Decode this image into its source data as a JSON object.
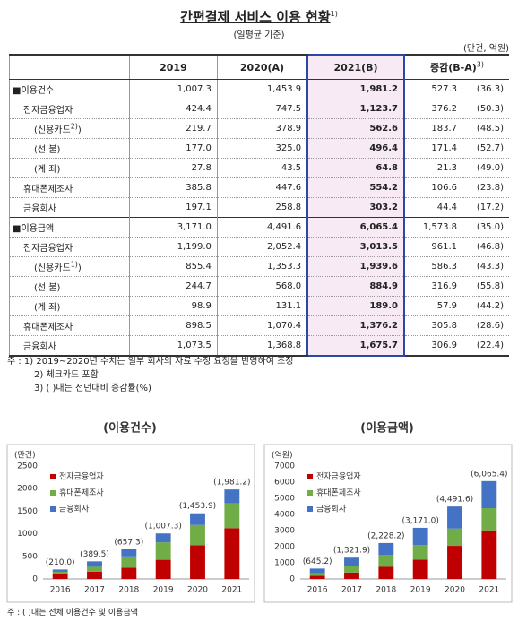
{
  "header": {
    "title": "간편결제 서비스 이용 현황",
    "title_sup": "1)",
    "subtitle": "(일평균 기준)",
    "unit": "(만건, 억원)"
  },
  "table": {
    "columns": [
      "2019",
      "2020(A)",
      "2021(B)",
      "증감(B-A)"
    ],
    "diff_sup": "3)",
    "sections": [
      {
        "label": "■이용건수",
        "cells": [
          "1,007.3",
          "1,453.9",
          "1,981.2",
          "527.3",
          "(36.3)"
        ],
        "rows": [
          {
            "label": "전자금융업자",
            "cells": [
              "424.4",
              "747.5",
              "1,123.7",
              "376.2",
              "(50.3)"
            ],
            "rows": [
              {
                "label": "(신용카드",
                "sup": "2)",
                "label_end": ")",
                "cells": [
                  "219.7",
                  "378.9",
                  "562.6",
                  "183.7",
                  "(48.5)"
                ]
              },
              {
                "label": "(선   불)",
                "cells": [
                  "177.0",
                  "325.0",
                  "496.4",
                  "171.4",
                  "(52.7)"
                ]
              },
              {
                "label": "(계   좌)",
                "cells": [
                  "27.8",
                  "43.5",
                  "64.8",
                  "21.3",
                  "(49.0)"
                ]
              }
            ]
          },
          {
            "label": "휴대폰제조사",
            "cells": [
              "385.8",
              "447.6",
              "554.2",
              "106.6",
              "(23.8)"
            ]
          },
          {
            "label": "금융회사",
            "cells": [
              "197.1",
              "258.8",
              "303.2",
              "44.4",
              "(17.2)"
            ]
          }
        ]
      },
      {
        "label": "■이용금액",
        "cells": [
          "3,171.0",
          "4,491.6",
          "6,065.4",
          "1,573.8",
          "(35.0)"
        ],
        "rows": [
          {
            "label": "전자금융업자",
            "cells": [
              "1,199.0",
              "2,052.4",
              "3,013.5",
              "961.1",
              "(46.8)"
            ],
            "rows": [
              {
                "label": "(신용카드",
                "sup": "1)",
                "label_end": ")",
                "cells": [
                  "855.4",
                  "1,353.3",
                  "1,939.6",
                  "586.3",
                  "(43.3)"
                ]
              },
              {
                "label": "(선   불)",
                "cells": [
                  "244.7",
                  "568.0",
                  "884.9",
                  "316.9",
                  "(55.8)"
                ]
              },
              {
                "label": "(계   좌)",
                "cells": [
                  "98.9",
                  "131.1",
                  "189.0",
                  "57.9",
                  "(44.2)"
                ]
              }
            ]
          },
          {
            "label": "휴대폰제조사",
            "cells": [
              "898.5",
              "1,070.4",
              "1,376.2",
              "305.8",
              "(28.6)"
            ]
          },
          {
            "label": "금융회사",
            "cells": [
              "1,073.5",
              "1,368.8",
              "1,675.7",
              "306.9",
              "(22.4)"
            ]
          }
        ]
      }
    ]
  },
  "notes": [
    "주 : 1) 2019~2020년 수치는 일부 회사의 자료 수정 요청을 반영하여 조정",
    "2) 체크카드 포함",
    "3) (   )내는 전년대비 증감률(%)"
  ],
  "chart_data": [
    {
      "type": "bar",
      "stacked": true,
      "title": "(이용건수)",
      "y_label": "(만건)",
      "categories": [
        "2016",
        "2017",
        "2018",
        "2019",
        "2020",
        "2021"
      ],
      "series": [
        {
          "name": "전자금융업자",
          "color": "#c00000",
          "values": [
            100,
            160,
            250,
            424.4,
            747.5,
            1123.7
          ]
        },
        {
          "name": "휴대폰제조사",
          "color": "#70ad47",
          "values": [
            60,
            110,
            250,
            385.8,
            447.6,
            554.2
          ]
        },
        {
          "name": "금융회사",
          "color": "#4472c4",
          "values": [
            50,
            120,
            157,
            197.1,
            258.8,
            303.2
          ]
        }
      ],
      "totals": {
        "values": [
          210.0,
          389.5,
          657.3,
          1007.3,
          1453.9,
          1981.2
        ],
        "value_labels": [
          "(210.0)",
          "(389.5)",
          "(657.3)",
          "(1,007.3)",
          "(1,453.9)",
          "(1,981.2)"
        ]
      },
      "ylim": [
        0,
        2500
      ],
      "yticks": [
        0,
        500,
        1000,
        1500,
        2000,
        2500
      ]
    },
    {
      "type": "bar",
      "stacked": true,
      "title": "(이용금액)",
      "y_label": "(억원)",
      "categories": [
        "2016",
        "2017",
        "2018",
        "2019",
        "2020",
        "2021"
      ],
      "series": [
        {
          "name": "전자금융업자",
          "color": "#c00000",
          "values": [
            200,
            400,
            750,
            1199.0,
            2052.4,
            3013.5
          ]
        },
        {
          "name": "휴대폰제조사",
          "color": "#70ad47",
          "values": [
            150,
            400,
            750,
            898.5,
            1070.4,
            1376.2
          ]
        },
        {
          "name": "금융회사",
          "color": "#4472c4",
          "values": [
            295,
            522,
            728,
            1073.5,
            1368.8,
            1675.7
          ]
        }
      ],
      "totals": {
        "values": [
          645.2,
          1321.9,
          2228.2,
          3171.0,
          4491.6,
          6065.4
        ],
        "value_labels": [
          "(645.2)",
          "(1,321.9)",
          "(2,228.2)",
          "(3,171.0)",
          "(4,491.6)",
          "(6,065.4)"
        ]
      },
      "ylim": [
        0,
        7000
      ],
      "yticks": [
        0,
        1000,
        2000,
        3000,
        4000,
        5000,
        6000,
        7000
      ]
    }
  ],
  "footnote": "주 : (   )내는 전체 이용건수 및 이용금액"
}
